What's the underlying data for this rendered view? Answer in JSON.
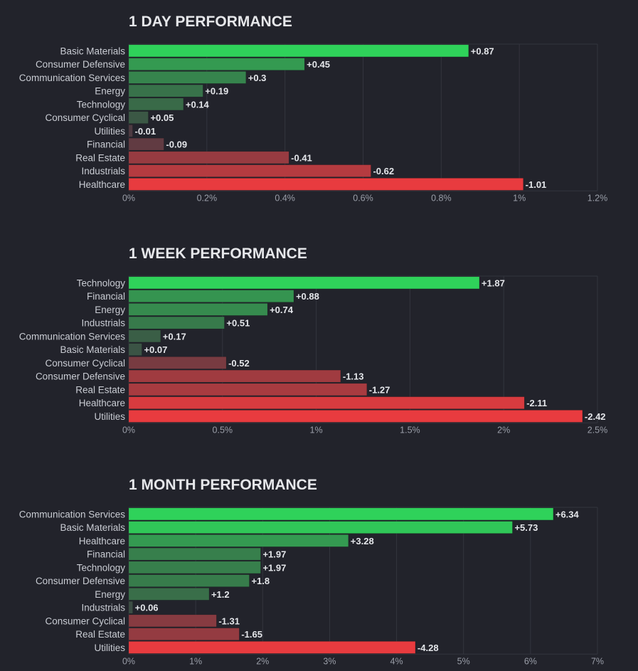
{
  "chart_data": [
    {
      "type": "bar",
      "orientation": "horizontal",
      "title": "1 DAY PERFORMANCE",
      "categories": [
        "Basic Materials",
        "Consumer Defensive",
        "Communication Services",
        "Energy",
        "Technology",
        "Consumer Cyclical",
        "Utilities",
        "Financial",
        "Real Estate",
        "Industrials",
        "Healthcare"
      ],
      "values": [
        0.87,
        0.45,
        0.3,
        0.19,
        0.14,
        0.05,
        -0.01,
        -0.09,
        -0.41,
        -0.62,
        -1.01
      ],
      "value_labels": [
        "+0.87",
        "+0.45",
        "+0.3",
        "+0.19",
        "+0.14",
        "+0.05",
        "-0.01",
        "-0.09",
        "-0.41",
        "-0.62",
        "-1.01"
      ],
      "xlim": [
        0,
        1.2
      ],
      "ticks": [
        0,
        0.2,
        0.4,
        0.6,
        0.8,
        1,
        1.2
      ],
      "tick_labels": [
        "0%",
        "0.2%",
        "0.4%",
        "0.6%",
        "0.8%",
        "1%",
        "1.2%"
      ],
      "bar_length": "absolute value",
      "grid": true
    },
    {
      "type": "bar",
      "orientation": "horizontal",
      "title": "1 WEEK PERFORMANCE",
      "categories": [
        "Technology",
        "Financial",
        "Energy",
        "Industrials",
        "Communication Services",
        "Basic Materials",
        "Consumer Cyclical",
        "Consumer Defensive",
        "Real Estate",
        "Healthcare",
        "Utilities"
      ],
      "values": [
        1.87,
        0.88,
        0.74,
        0.51,
        0.17,
        0.07,
        -0.52,
        -1.13,
        -1.27,
        -2.11,
        -2.42
      ],
      "value_labels": [
        "+1.87",
        "+0.88",
        "+0.74",
        "+0.51",
        "+0.17",
        "+0.07",
        "-0.52",
        "-1.13",
        "-1.27",
        "-2.11",
        "-2.42"
      ],
      "xlim": [
        0,
        2.5
      ],
      "ticks": [
        0,
        0.5,
        1,
        1.5,
        2,
        2.5
      ],
      "tick_labels": [
        "0%",
        "0.5%",
        "1%",
        "1.5%",
        "2%",
        "2.5%"
      ],
      "bar_length": "absolute value",
      "grid": true
    },
    {
      "type": "bar",
      "orientation": "horizontal",
      "title": "1 MONTH PERFORMANCE",
      "categories": [
        "Communication Services",
        "Basic Materials",
        "Healthcare",
        "Financial",
        "Technology",
        "Consumer Defensive",
        "Energy",
        "Industrials",
        "Consumer Cyclical",
        "Real Estate",
        "Utilities"
      ],
      "values": [
        6.34,
        5.73,
        3.28,
        1.97,
        1.97,
        1.8,
        1.2,
        0.06,
        -1.31,
        -1.65,
        -4.28
      ],
      "value_labels": [
        "+6.34",
        "+5.73",
        "+3.28",
        "+1.97",
        "+1.97",
        "+1.8",
        "+1.2",
        "+0.06",
        "-1.31",
        "-1.65",
        "-4.28"
      ],
      "xlim": [
        0,
        7
      ],
      "ticks": [
        0,
        1,
        2,
        3,
        4,
        5,
        6,
        7
      ],
      "tick_labels": [
        "0%",
        "1%",
        "2%",
        "3%",
        "4%",
        "5%",
        "6%",
        "7%"
      ],
      "bar_length": "absolute value",
      "grid": true
    }
  ],
  "colors": {
    "background": "#22232b",
    "positive_strong": "#2fd25a",
    "positive_weak": "#3c4a43",
    "negative_strong": "#e83b3f",
    "negative_weak": "#4a3b42",
    "grid": "#33353e"
  }
}
